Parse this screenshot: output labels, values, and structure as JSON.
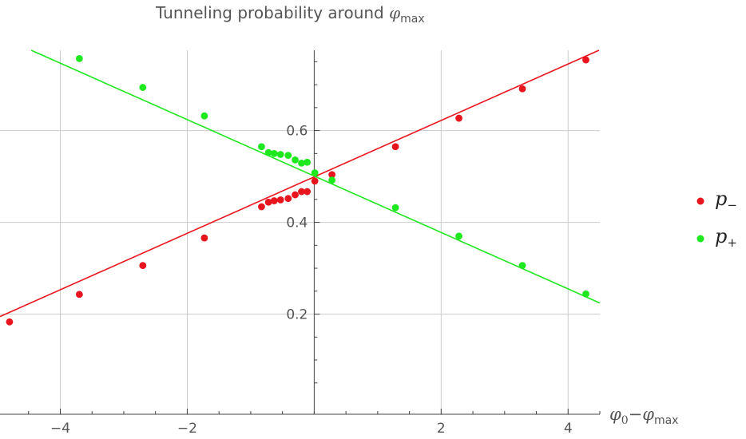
{
  "chart_data": {
    "type": "scatter",
    "title": {
      "text": "Tunneling probability around ",
      "symbol": "φ",
      "symbol_sub": "max"
    },
    "xlabel": {
      "sym1": "φ",
      "sub1": "0",
      "op": "−",
      "sym2": "φ",
      "sub2": "max"
    },
    "ylabel": "",
    "xlim": [
      -4.95,
      4.5
    ],
    "ylim": [
      -0.02,
      0.775
    ],
    "x_ticks": [
      -4,
      -2,
      2,
      4
    ],
    "x_tick_labels": [
      "−4",
      "−2",
      "2",
      "4"
    ],
    "y_ticks": [
      0.2,
      0.4,
      0.6
    ],
    "y_tick_labels": [
      "0.2",
      "0.4",
      "0.6"
    ],
    "grid": true,
    "legend_position": "right",
    "colors": {
      "p_minus": "#e8141e",
      "p_plus": "#1ee81e",
      "grid": "#cccccc",
      "axis": "#444444"
    },
    "series": [
      {
        "name": "p",
        "name_sub": "−",
        "color": "#e8141e",
        "x": [
          -4.8,
          -3.7,
          -2.7,
          -1.73,
          -0.83,
          -0.72,
          -0.63,
          -0.53,
          -0.41,
          -0.3,
          -0.2,
          -0.11,
          0.01,
          0.28,
          1.28,
          2.28,
          3.28,
          4.28
        ],
        "y": [
          0.183,
          0.243,
          0.306,
          0.366,
          0.434,
          0.444,
          0.447,
          0.449,
          0.452,
          0.46,
          0.467,
          0.467,
          0.49,
          0.504,
          0.565,
          0.627,
          0.691,
          0.754
        ],
        "fit": {
          "slope": 0.0615,
          "intercept": 0.4991
        }
      },
      {
        "name": "p",
        "name_sub": "+",
        "color": "#1ee81e",
        "x": [
          -3.7,
          -2.7,
          -1.73,
          -0.83,
          -0.72,
          -0.63,
          -0.53,
          -0.41,
          -0.3,
          -0.2,
          -0.11,
          0.01,
          0.28,
          1.28,
          2.28,
          3.28,
          4.28
        ],
        "y": [
          0.757,
          0.694,
          0.632,
          0.565,
          0.552,
          0.55,
          0.548,
          0.546,
          0.536,
          0.529,
          0.531,
          0.508,
          0.492,
          0.432,
          0.37,
          0.306,
          0.244
        ],
        "fit": {
          "slope": -0.0615,
          "intercept": 0.5009
        }
      }
    ]
  }
}
